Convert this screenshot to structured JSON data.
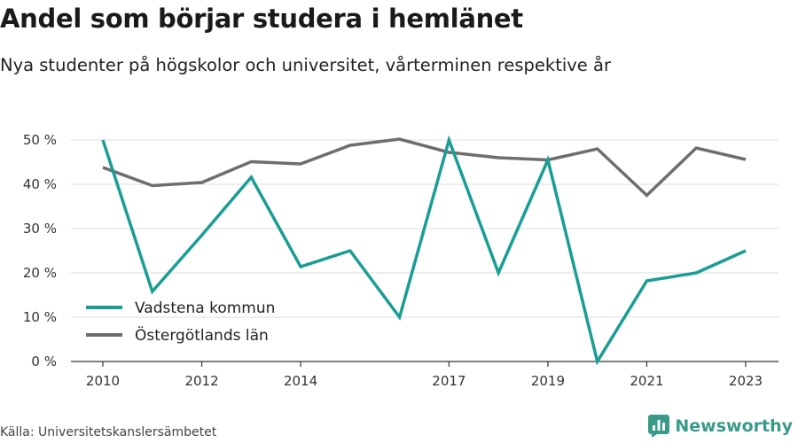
{
  "header": {
    "title": "Andel som börjar studera i hemlänet",
    "subtitle": "Nya studenter på högskolor och universitet, vårterminen respektive år"
  },
  "footer": {
    "source": "Källa: Universitetskanslersämbetet",
    "brand": "Newsworthy",
    "brand_color": "#3a9a8a",
    "brand_icon": "bar-chart-icon"
  },
  "chart_data": {
    "type": "line",
    "title": "Andel som börjar studera i hemlänet",
    "subtitle": "Nya studenter på högskolor och universitet, vårterminen respektive år",
    "xlabel": "",
    "ylabel": "",
    "x": [
      2010,
      2011,
      2012,
      2013,
      2014,
      2015,
      2016,
      2017,
      2018,
      2019,
      2020,
      2021,
      2022,
      2023
    ],
    "x_ticks": [
      "2010",
      "2012",
      "2014",
      "2017",
      "2019",
      "2021",
      "2023"
    ],
    "y_ticks": [
      "0 %",
      "10 %",
      "20 %",
      "30 %",
      "40 %",
      "50 %"
    ],
    "ylim": [
      0,
      50
    ],
    "grid": true,
    "legend_position": "bottom-left",
    "series": [
      {
        "name": "Vadstena kommun",
        "color": "#1a9e94",
        "values": [
          50,
          15.8,
          28.5,
          41.6,
          21.4,
          25.0,
          10.0,
          50.0,
          20.0,
          45.5,
          0,
          18.2,
          20.0,
          25.0
        ]
      },
      {
        "name": "Östergötlands län",
        "color": "#6d6d72",
        "values": [
          43.8,
          39.7,
          40.4,
          45.1,
          44.6,
          48.8,
          50.2,
          47.2,
          46.0,
          45.5,
          48.0,
          37.5,
          48.2,
          45.6
        ]
      }
    ]
  }
}
